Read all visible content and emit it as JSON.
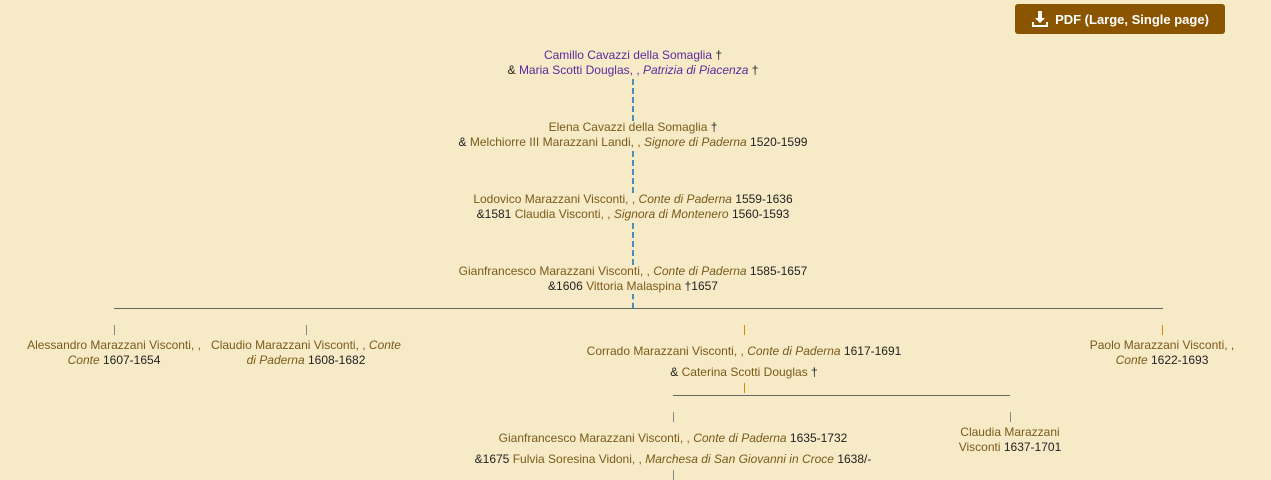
{
  "toolbar": {
    "pdf_label": "PDF (Large, Single page)",
    "pdf_icon": "download-icon"
  },
  "colors": {
    "background": "#f7eac6",
    "button": "#8b5500",
    "name": "#7b5a1a",
    "visited_name": "#5b2a9e",
    "connector": "#4a90b8"
  },
  "tree": {
    "g1": {
      "name": "Camillo Cavazzi della Somaglia",
      "suffix": " †",
      "spouse_prefix": "& ",
      "spouse": "Maria Scotti Douglas, , ",
      "spouse_title": "Patrizia di Piacenza",
      "spouse_suffix": " †"
    },
    "g2": {
      "name": "Elena Cavazzi della Somaglia",
      "suffix": " †",
      "spouse_prefix": "& ",
      "spouse": "Melchiorre III Marazzani Landi, , ",
      "spouse_title": "Signore di Paderna",
      "spouse_dates": " 1520-1599"
    },
    "g3": {
      "name": "Lodovico Marazzani Visconti, , ",
      "title": "Conte di Paderna",
      "dates": " 1559-1636",
      "spouse_prefix": "&1581 ",
      "spouse": "Claudia Visconti, , ",
      "spouse_title": "Signora di Montenero",
      "spouse_dates": " 1560-1593"
    },
    "g4": {
      "name": "Gianfrancesco Marazzani Visconti, , ",
      "title": "Conte di Paderna",
      "dates": " 1585-1657",
      "spouse_prefix": "&1606 ",
      "spouse": "Vittoria Malaspina",
      "spouse_dates": " †1657"
    },
    "children": [
      {
        "name": "Alessandro Marazzani Visconti, , ",
        "title": "Conte",
        "dates": " 1607-1654"
      },
      {
        "name": "Claudio Marazzani Visconti, , ",
        "title": "Conte di Paderna",
        "dates": " 1608-1682"
      },
      {
        "name": "Corrado Marazzani Visconti, , ",
        "title": "Conte di Paderna",
        "dates": " 1617-1691",
        "spouse_prefix": "& ",
        "spouse": "Caterina Scotti Douglas",
        "spouse_suffix": " †"
      },
      {
        "name": "Paolo Marazzani Visconti, , ",
        "title": "Conte",
        "dates": " 1622-1693"
      }
    ],
    "grandchildren": [
      {
        "name": "Gianfrancesco Marazzani Visconti, , ",
        "title": "Conte di Paderna",
        "dates": " 1635-1732",
        "spouse_prefix": "&1675 ",
        "spouse": "Fulvia Soresina Vidoni, , ",
        "spouse_title": "Marchesa di San Giovanni in Croce",
        "spouse_dates": " 1638/-"
      },
      {
        "name": "Claudia Marazzani Visconti",
        "dates": " 1637-1701"
      }
    ]
  }
}
